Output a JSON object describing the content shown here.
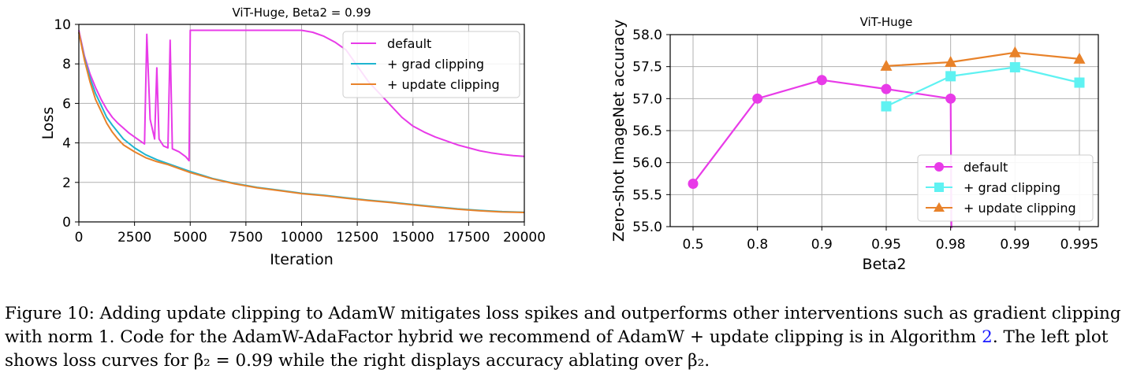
{
  "chart_data": [
    {
      "type": "line",
      "title": "ViT-Huge, Beta2 = 0.99",
      "xlabel": "Iteration",
      "ylabel": "Loss",
      "xlim": [
        0,
        20000
      ],
      "ylim": [
        0,
        10
      ],
      "xticks": [
        "0",
        "2500",
        "5000",
        "7500",
        "10000",
        "12500",
        "15000",
        "17500",
        "20000"
      ],
      "yticks": [
        "0",
        "2",
        "4",
        "6",
        "8",
        "10"
      ],
      "grid": true,
      "legend_position": "top-right",
      "series": [
        {
          "name": "default",
          "color": "#e83be8",
          "x": [
            0,
            250,
            500,
            750,
            1000,
            1250,
            1500,
            1750,
            2000,
            2250,
            2500,
            2750,
            2950,
            3050,
            3200,
            3400,
            3500,
            3600,
            3800,
            4000,
            4100,
            4200,
            4500,
            4800,
            4950,
            5000,
            5200,
            6000,
            7000,
            7500,
            8000,
            9000,
            9500,
            10000,
            10500,
            11000,
            11500,
            12000,
            12500,
            13000,
            13500,
            14000,
            14500,
            15000,
            15500,
            16000,
            16500,
            17000,
            17500,
            18000,
            18500,
            19000,
            19500,
            20000
          ],
          "y": [
            9.7,
            8.4,
            7.5,
            6.8,
            6.2,
            5.7,
            5.3,
            5.0,
            4.75,
            4.5,
            4.3,
            4.1,
            3.95,
            9.5,
            5.2,
            4.2,
            7.8,
            4.2,
            3.85,
            3.75,
            9.2,
            3.7,
            3.55,
            3.3,
            3.1,
            9.7,
            9.7,
            9.7,
            9.7,
            9.7,
            9.7,
            9.7,
            9.7,
            9.7,
            9.6,
            9.4,
            9.1,
            8.7,
            7.9,
            7.1,
            6.5,
            5.9,
            5.3,
            4.85,
            4.55,
            4.3,
            4.1,
            3.9,
            3.75,
            3.6,
            3.5,
            3.42,
            3.36,
            3.32
          ]
        },
        {
          "name": "+ grad clipping",
          "color": "#1fb5cf",
          "x": [
            0,
            250,
            500,
            750,
            1000,
            1250,
            1500,
            1750,
            2000,
            2500,
            3000,
            3500,
            4000,
            5000,
            6000,
            7000,
            8000,
            9000,
            10000,
            11000,
            12000,
            13000,
            14000,
            15000,
            16000,
            17000,
            18000,
            19000,
            20000
          ],
          "y": [
            9.6,
            8.3,
            7.3,
            6.5,
            5.9,
            5.3,
            4.9,
            4.55,
            4.2,
            3.75,
            3.4,
            3.15,
            2.95,
            2.55,
            2.2,
            1.95,
            1.75,
            1.6,
            1.45,
            1.35,
            1.22,
            1.1,
            1.0,
            0.88,
            0.77,
            0.66,
            0.58,
            0.52,
            0.49
          ]
        },
        {
          "name": "+ update clipping",
          "color": "#e8822a",
          "x": [
            0,
            250,
            500,
            750,
            1000,
            1250,
            1500,
            1750,
            2000,
            2500,
            3000,
            3500,
            4000,
            5000,
            6000,
            7000,
            8000,
            9000,
            10000,
            11000,
            12000,
            13000,
            14000,
            15000,
            16000,
            17000,
            18000,
            19000,
            20000
          ],
          "y": [
            9.6,
            8.2,
            7.1,
            6.2,
            5.6,
            5.0,
            4.55,
            4.2,
            3.9,
            3.55,
            3.25,
            3.05,
            2.9,
            2.5,
            2.18,
            1.93,
            1.73,
            1.58,
            1.43,
            1.33,
            1.2,
            1.08,
            0.98,
            0.86,
            0.75,
            0.64,
            0.56,
            0.5,
            0.48
          ]
        }
      ]
    },
    {
      "type": "line",
      "title": "ViT-Huge",
      "xlabel": "Beta2",
      "ylabel": "Zero-shot ImageNet accuracy",
      "categories": [
        "0.5",
        "0.8",
        "0.9",
        "0.95",
        "0.98",
        "0.99",
        "0.995"
      ],
      "ylim": [
        55.0,
        58.0
      ],
      "yticks": [
        "55.0",
        "55.5",
        "56.0",
        "56.5",
        "57.0",
        "57.5",
        "58.0"
      ],
      "grid": true,
      "legend_position": "lower-right",
      "series": [
        {
          "name": "default",
          "color": "#e83be8",
          "marker": "circle",
          "values": [
            55.67,
            57.0,
            57.29,
            57.15,
            57.0,
            null,
            null
          ],
          "drops_below_axis_after": "0.98"
        },
        {
          "name": "+ grad clipping",
          "color": "#5ff2f2",
          "marker": "square",
          "values": [
            null,
            null,
            null,
            56.88,
            57.35,
            57.49,
            57.25
          ]
        },
        {
          "name": "+ update clipping",
          "color": "#e8822a",
          "marker": "triangle",
          "values": [
            null,
            null,
            null,
            57.51,
            57.57,
            57.72,
            57.62
          ]
        }
      ]
    }
  ],
  "caption": {
    "part1": "Figure 10:  Adding update clipping to AdamW mitigates loss spikes and outperforms other interventions such as gradient clipping with norm 1. Code for the AdamW-AdaFactor hybrid we recommend of AdamW + update clipping is in Algorithm ",
    "ref": "2",
    "part2": ". The left plot shows loss curves for β₂ = 0.99 while the right displays accuracy ablating over β₂."
  }
}
